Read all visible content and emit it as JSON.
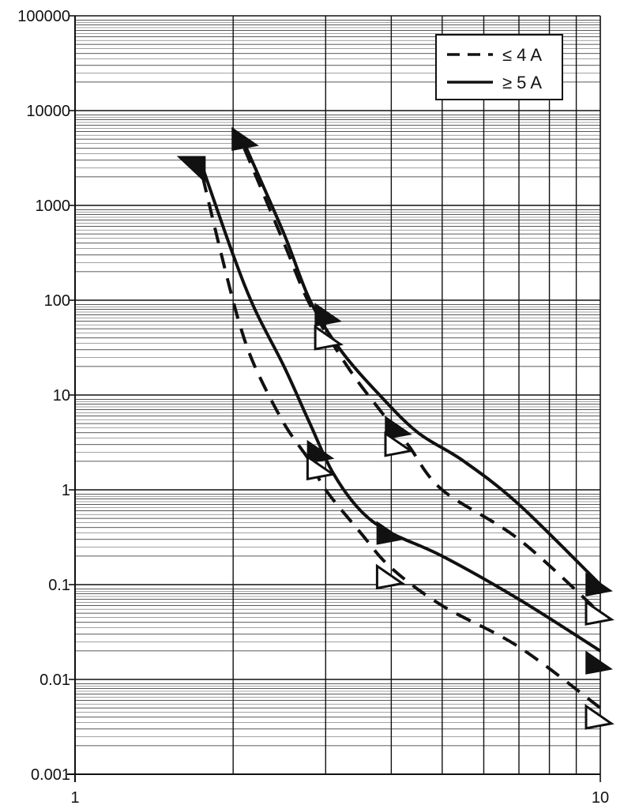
{
  "chart_data": {
    "type": "line",
    "title": "",
    "xlabel": "",
    "ylabel": "",
    "x_scale": "log",
    "y_scale": "log",
    "xlim": [
      1,
      10
    ],
    "ylim": [
      0.001,
      100000
    ],
    "grid": true,
    "x_tick_labels": [
      {
        "value": 1,
        "label": "1"
      },
      {
        "value": 10,
        "label": "10"
      }
    ],
    "y_tick_labels": [
      {
        "value": 100000,
        "label": "100000"
      },
      {
        "value": 10000,
        "label": "10000"
      },
      {
        "value": 1000,
        "label": "1000"
      },
      {
        "value": 100,
        "label": "100"
      },
      {
        "value": 10,
        "label": "10"
      },
      {
        "value": 1,
        "label": "1"
      },
      {
        "value": 0.1,
        "label": "0.1"
      },
      {
        "value": 0.01,
        "label": "0.01"
      },
      {
        "value": 0.001,
        "label": "0.001"
      }
    ],
    "legend": {
      "placement": "top-right",
      "entries": [
        {
          "style": "dashed",
          "label": "≤ 4 A"
        },
        {
          "style": "solid",
          "label": "≥ 5 A"
        }
      ]
    },
    "series": [
      {
        "style": "dashed",
        "points": [
          [
            1.75,
            2000
          ],
          [
            1.9,
            300
          ],
          [
            2.05,
            60
          ],
          [
            2.2,
            20
          ],
          [
            2.5,
            5
          ],
          [
            2.8,
            2
          ],
          [
            3.0,
            1.0
          ],
          [
            3.5,
            0.35
          ],
          [
            4.0,
            0.15
          ],
          [
            5.0,
            0.06
          ],
          [
            7.0,
            0.022
          ],
          [
            10.0,
            0.005
          ]
        ]
      },
      {
        "style": "solid",
        "points": [
          [
            1.75,
            2500
          ],
          [
            2.0,
            300
          ],
          [
            2.2,
            80
          ],
          [
            2.5,
            20
          ],
          [
            2.8,
            5
          ],
          [
            3.1,
            1.5
          ],
          [
            3.5,
            0.6
          ],
          [
            4.0,
            0.35
          ],
          [
            5.0,
            0.2
          ],
          [
            7.0,
            0.07
          ],
          [
            10.0,
            0.02
          ]
        ]
      },
      {
        "style": "dashed",
        "points": [
          [
            2.1,
            4000
          ],
          [
            2.5,
            400
          ],
          [
            2.8,
            90
          ],
          [
            3.3,
            20
          ],
          [
            3.8,
            7
          ],
          [
            4.3,
            3
          ],
          [
            5.0,
            1.0
          ],
          [
            7.0,
            0.3
          ],
          [
            10.0,
            0.05
          ]
        ]
      },
      {
        "style": "solid",
        "points": [
          [
            2.1,
            4500
          ],
          [
            2.5,
            500
          ],
          [
            2.8,
            100
          ],
          [
            3.2,
            30
          ],
          [
            3.8,
            10
          ],
          [
            4.5,
            4
          ],
          [
            5.5,
            2
          ],
          [
            7.0,
            0.7
          ],
          [
            10.0,
            0.1
          ]
        ]
      }
    ],
    "end_markers": [
      {
        "x": 1.72,
        "y": 2800,
        "fill": "solid",
        "direction": "down-right"
      },
      {
        "x": 2.12,
        "y": 5000,
        "fill": "solid",
        "direction": "right"
      },
      {
        "x": 3.05,
        "y": 70,
        "fill": "solid",
        "direction": "right"
      },
      {
        "x": 3.05,
        "y": 40,
        "fill": "open",
        "direction": "right"
      },
      {
        "x": 4.15,
        "y": 4.5,
        "fill": "solid",
        "direction": "right"
      },
      {
        "x": 4.15,
        "y": 3.0,
        "fill": "open",
        "direction": "right"
      },
      {
        "x": 2.95,
        "y": 2.5,
        "fill": "solid",
        "direction": "right"
      },
      {
        "x": 2.95,
        "y": 1.7,
        "fill": "open",
        "direction": "right"
      },
      {
        "x": 4.0,
        "y": 0.35,
        "fill": "solid",
        "direction": "right"
      },
      {
        "x": 4.0,
        "y": 0.12,
        "fill": "open",
        "direction": "right"
      },
      {
        "x": 10.0,
        "y": 0.1,
        "fill": "solid",
        "direction": "right"
      },
      {
        "x": 10.0,
        "y": 0.05,
        "fill": "open",
        "direction": "right"
      },
      {
        "x": 10.0,
        "y": 0.015,
        "fill": "solid",
        "direction": "right"
      },
      {
        "x": 10.0,
        "y": 0.004,
        "fill": "open",
        "direction": "right"
      }
    ]
  }
}
